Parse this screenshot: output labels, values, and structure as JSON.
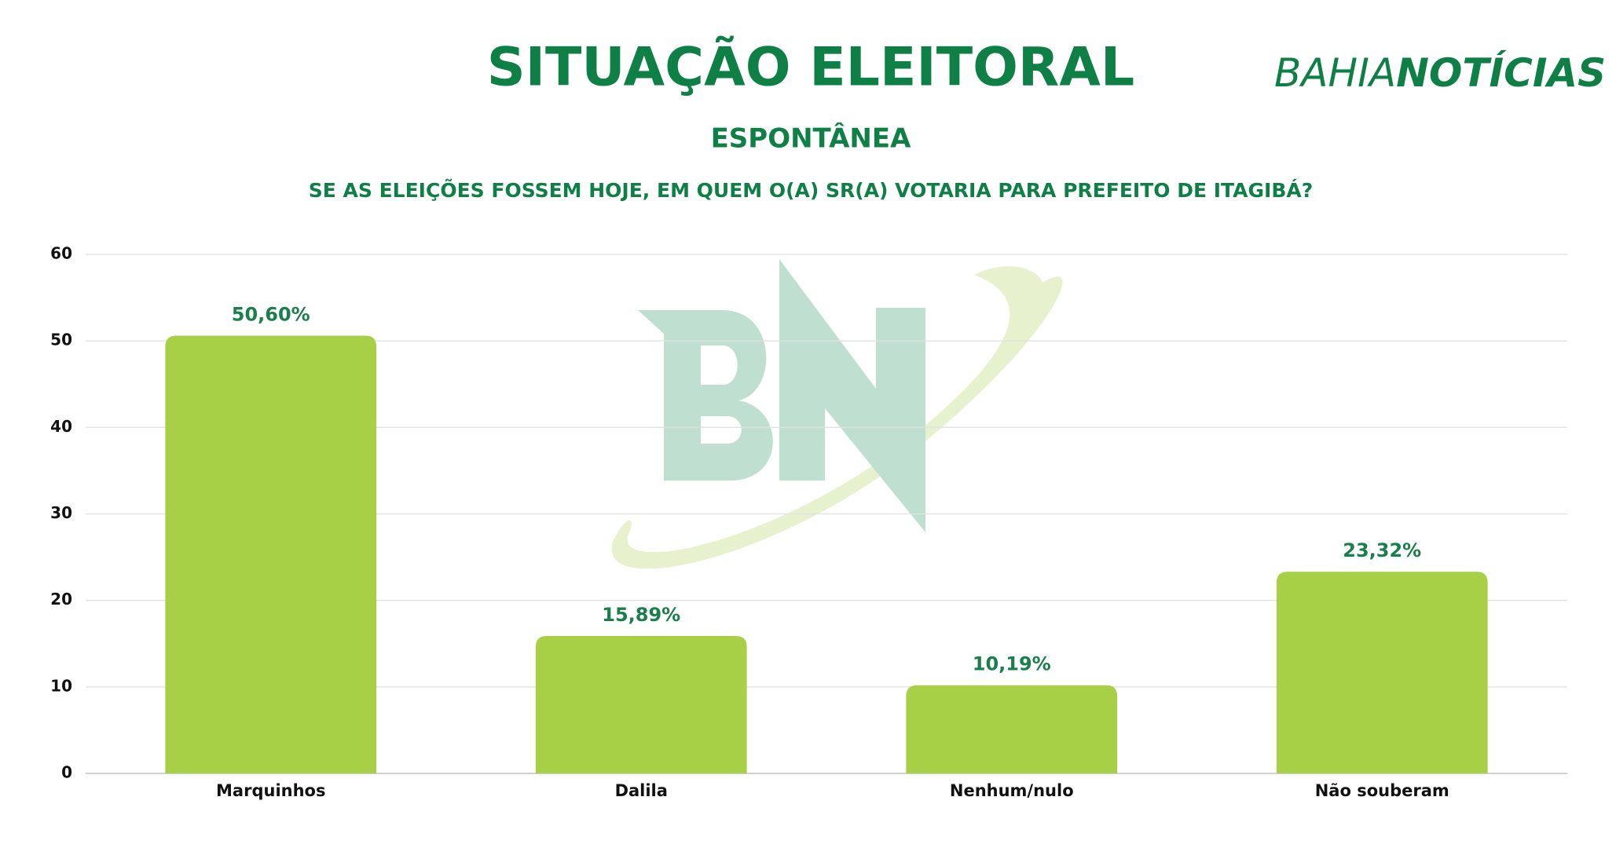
{
  "logo": {
    "light": "BAHIA",
    "bold": "NOTÍCIAS"
  },
  "chart_data": {
    "type": "bar",
    "title": "SITUAÇÃO ELEITORAL",
    "subtitle": "ESPONTÂNEA",
    "question": "SE AS ELEIÇÕES FOSSEM HOJE, EM QUEM O(A) SR(A) VOTARIA PARA PREFEITO DE ITAGIBÁ?",
    "categories": [
      "Marquinhos",
      "Dalila",
      "Nenhum/nulo",
      "Não souberam"
    ],
    "values": [
      50.6,
      15.89,
      10.19,
      23.32
    ],
    "value_labels": [
      "50,60%",
      "15,89%",
      "10,19%",
      "23,32%"
    ],
    "color": "#a8d047",
    "ylim": [
      0,
      60
    ],
    "yticks": [
      0,
      10,
      20,
      30,
      40,
      50,
      60
    ],
    "grid": true
  }
}
